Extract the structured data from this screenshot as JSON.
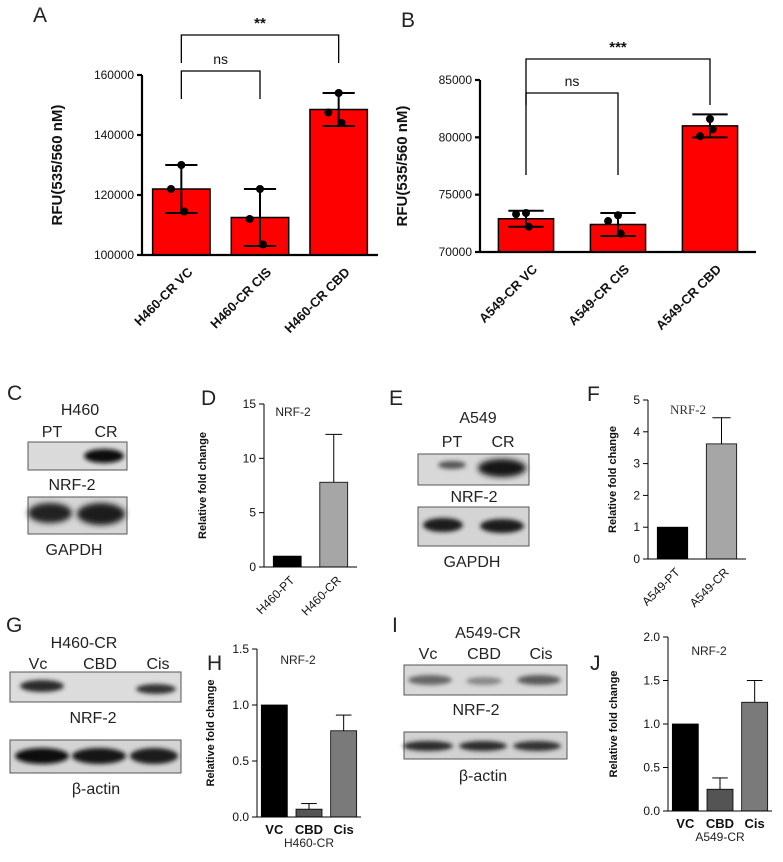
{
  "chart_data": [
    {
      "panel": "A",
      "type": "bar",
      "categories": [
        "H460-CR VC",
        "H460-CR CIS",
        "H460-CR CBD"
      ],
      "values": [
        122000,
        112500,
        148500
      ],
      "errors": [
        8000,
        9500,
        5500
      ],
      "points": [
        [
          130000,
          122000,
          114500
        ],
        [
          122000,
          112000,
          103500
        ],
        [
          154000,
          147500,
          144000
        ]
      ],
      "ylabel": "RFU(535/560 nM)",
      "ylim": [
        100000,
        160000
      ],
      "yticks": [
        100000,
        120000,
        140000,
        160000
      ],
      "color": "#ff0000",
      "comparisons": [
        {
          "from": 0,
          "to": 1,
          "label": "ns"
        },
        {
          "from": 0,
          "to": 2,
          "label": "**"
        }
      ]
    },
    {
      "panel": "B",
      "type": "bar",
      "categories": [
        "A549-CR VC",
        "A549-CR CIS",
        "A549-CR CBD"
      ],
      "values": [
        72900,
        72400,
        81000
      ],
      "errors": [
        700,
        1000,
        1000
      ],
      "points": [
        [
          73400,
          73300,
          72200
        ],
        [
          73200,
          72700,
          71600
        ],
        [
          81600,
          80100,
          80700
        ]
      ],
      "ylabel": "RFU(535/560 nM)",
      "ylim": [
        70000,
        85000
      ],
      "yticks": [
        70000,
        75000,
        80000,
        85000
      ],
      "color": "#ff0000",
      "comparisons": [
        {
          "from": 0,
          "to": 1,
          "label": "ns"
        },
        {
          "from": 0,
          "to": 2,
          "label": "***"
        }
      ]
    },
    {
      "panel": "D",
      "type": "bar",
      "title": "NRF-2",
      "categories": [
        "H460-PT",
        "H460-CR"
      ],
      "values": [
        1.0,
        7.8
      ],
      "errors": [
        0,
        4.4
      ],
      "ylabel": "Relative fold change",
      "ylim": [
        0,
        15
      ],
      "yticks": [
        0,
        5,
        10,
        15
      ],
      "colors": [
        "#000000",
        "#a6a6a6"
      ]
    },
    {
      "panel": "F",
      "type": "bar",
      "title": "NRF-2",
      "categories": [
        "A549-PT",
        "A549-CR"
      ],
      "values": [
        1.0,
        3.62
      ],
      "errors": [
        0,
        0.82
      ],
      "ylabel": "Relative fold change",
      "ylim": [
        0,
        5
      ],
      "yticks": [
        0,
        1,
        2,
        3,
        4,
        5
      ],
      "colors": [
        "#000000",
        "#a6a6a6"
      ]
    },
    {
      "panel": "H",
      "type": "bar",
      "title": "NRF-2",
      "categories": [
        "VC",
        "CBD",
        "Cis"
      ],
      "values": [
        1.0,
        0.07,
        0.77
      ],
      "errors": [
        0,
        0.05,
        0.14
      ],
      "xlabel": "H460-CR",
      "ylabel": "Relative fold change",
      "ylim": [
        0,
        1.5
      ],
      "yticks": [
        0.0,
        0.5,
        1.0,
        1.5
      ],
      "colors": [
        "#000000",
        "#545454",
        "#7a7a7a"
      ]
    },
    {
      "panel": "J",
      "type": "bar",
      "title": "NRF-2",
      "categories": [
        "VC",
        "CBD",
        "Cis"
      ],
      "values": [
        1.0,
        0.25,
        1.25
      ],
      "errors": [
        0,
        0.13,
        0.25
      ],
      "xlabel": "A549-CR",
      "ylabel": "Relative fold change",
      "ylim": [
        0,
        2.0
      ],
      "yticks": [
        0.0,
        0.5,
        1.0,
        1.5,
        2.0
      ],
      "colors": [
        "#000000",
        "#545454",
        "#7a7a7a"
      ]
    }
  ],
  "blots": [
    {
      "panel": "C",
      "title": "H460",
      "lanes": [
        "PT",
        "CR"
      ],
      "labels": [
        "NRF-2",
        "GAPDH"
      ]
    },
    {
      "panel": "E",
      "title": "A549",
      "lanes": [
        "PT",
        "CR"
      ],
      "labels": [
        "NRF-2",
        "GAPDH"
      ]
    },
    {
      "panel": "G",
      "title": "H460-CR",
      "lanes": [
        "Vc",
        "CBD",
        "Cis"
      ],
      "labels": [
        "NRF-2",
        "β-actin"
      ]
    },
    {
      "panel": "I",
      "title": "A549-CR",
      "lanes": [
        "Vc",
        "CBD",
        "Cis"
      ],
      "labels": [
        "NRF-2",
        "β-actin"
      ]
    }
  ]
}
